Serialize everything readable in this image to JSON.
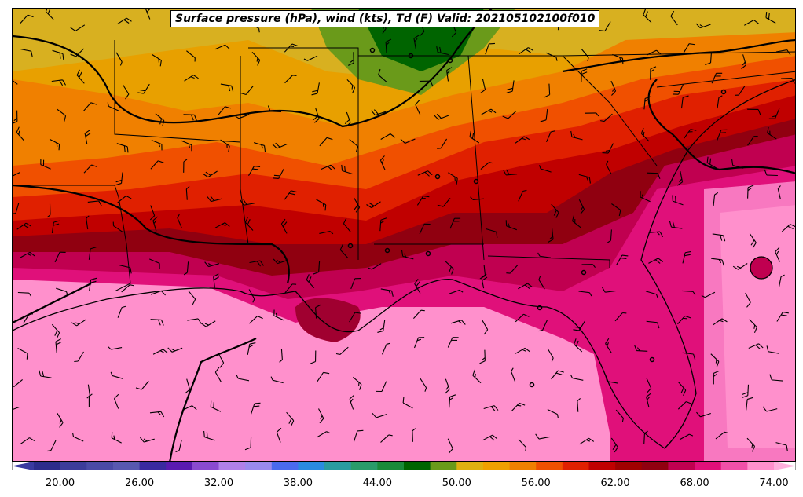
{
  "title": "Surface pressure (hPa), wind (kts), Td (F) Valid: 202105102100f010",
  "colorbar": {
    "tick_labels": [
      "20.00",
      "26.00",
      "32.00",
      "38.00",
      "44.00",
      "50.00",
      "56.00",
      "62.00",
      "68.00",
      "74.00"
    ],
    "colors": [
      "#2c2c8c",
      "#3c3c9a",
      "#4a4aa6",
      "#5858b0",
      "#3a2aa0",
      "#5a1ab0",
      "#8a4ad0",
      "#b080e8",
      "#9a8aee",
      "#4a6aee",
      "#2a8ae0",
      "#2a9aa0",
      "#2a9a6a",
      "#1a8a3a",
      "#006400",
      "#6a9a1a",
      "#e0b010",
      "#f0a000",
      "#f08000",
      "#f05000",
      "#e02000",
      "#c00000",
      "#a00000",
      "#900010",
      "#c00050",
      "#e0107a",
      "#f050a8",
      "#ff90cc"
    ],
    "extend_colors": {
      "low": "#3a3aa0",
      "high": "#ffb0dd"
    }
  },
  "icons": [
    "wind-barb-icon",
    "pressure-center-icon"
  ]
}
